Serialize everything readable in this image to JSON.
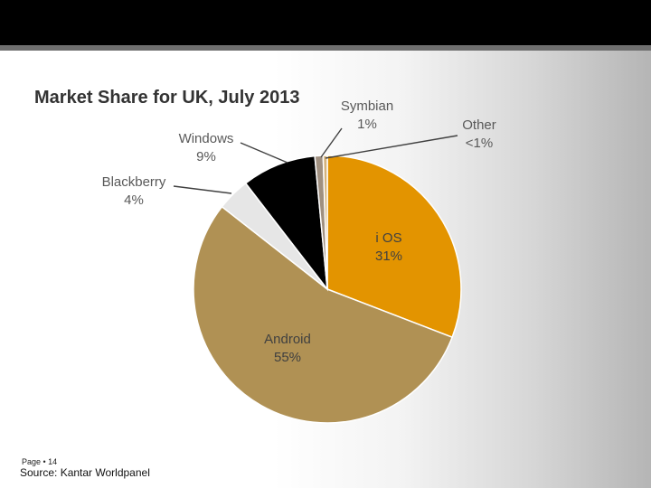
{
  "slide": {
    "page_label": "Page • 14",
    "source": "Source: Kantar Worldpanel"
  },
  "colors": {
    "ios": "#e39400",
    "android": "#b09154",
    "blackberry": "#e6e6e6",
    "windows": "#000000",
    "symbian": "#a09080",
    "other": "#d4b27c"
  },
  "chart_data": {
    "type": "pie",
    "title": "Market Share for UK, July 2013",
    "slices": [
      {
        "key": "ios",
        "category": "iOS",
        "label": "i OS",
        "value": 31,
        "value_label": "31%"
      },
      {
        "key": "android",
        "category": "Android",
        "label": "Android",
        "value": 55,
        "value_label": "55%"
      },
      {
        "key": "blackberry",
        "category": "Blackberry",
        "label": "Blackberry",
        "value": 4,
        "value_label": "4%"
      },
      {
        "key": "windows",
        "category": "Windows",
        "label": "Windows",
        "value": 9,
        "value_label": "9%"
      },
      {
        "key": "symbian",
        "category": "Symbian",
        "label": "Symbian",
        "value": 1,
        "value_label": "1%"
      },
      {
        "key": "other",
        "category": "Other",
        "label": "Other",
        "value": 0.5,
        "value_label": "<1%"
      }
    ],
    "legend": "none",
    "label_placement": "inside for iOS and Android, outside with leader lines for others"
  }
}
